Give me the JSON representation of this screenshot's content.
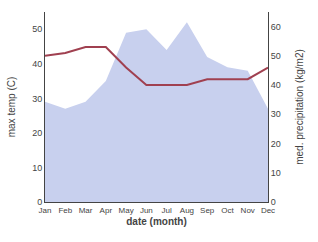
{
  "chart_data": {
    "type": "line",
    "xlabel": "date (month)",
    "ylabel": "max temp (C)",
    "y2label": "med. precipitation (kg/m2)",
    "categories": [
      "Jan",
      "Feb",
      "Mar",
      "Apr",
      "May",
      "Jun",
      "Jul",
      "Aug",
      "Sep",
      "Oct",
      "Nov",
      "Dec"
    ],
    "series": [
      {
        "type": "area",
        "color": "#c8d0ee",
        "values": [
          29,
          27,
          29,
          35,
          49,
          50,
          44,
          52,
          42,
          39,
          38,
          27
        ]
      },
      {
        "type": "line",
        "color": "#a04050",
        "axis": "y2",
        "values": [
          50,
          51,
          53,
          53,
          46,
          40,
          40,
          40,
          42,
          42,
          42,
          46
        ]
      }
    ],
    "ylim": [
      0,
      55
    ],
    "yticks": [
      0,
      10,
      20,
      30,
      40,
      50
    ],
    "y2lim": [
      0,
      65
    ],
    "y2ticks": [
      0,
      10,
      20,
      30,
      40,
      50,
      60
    ],
    "grid": false
  }
}
